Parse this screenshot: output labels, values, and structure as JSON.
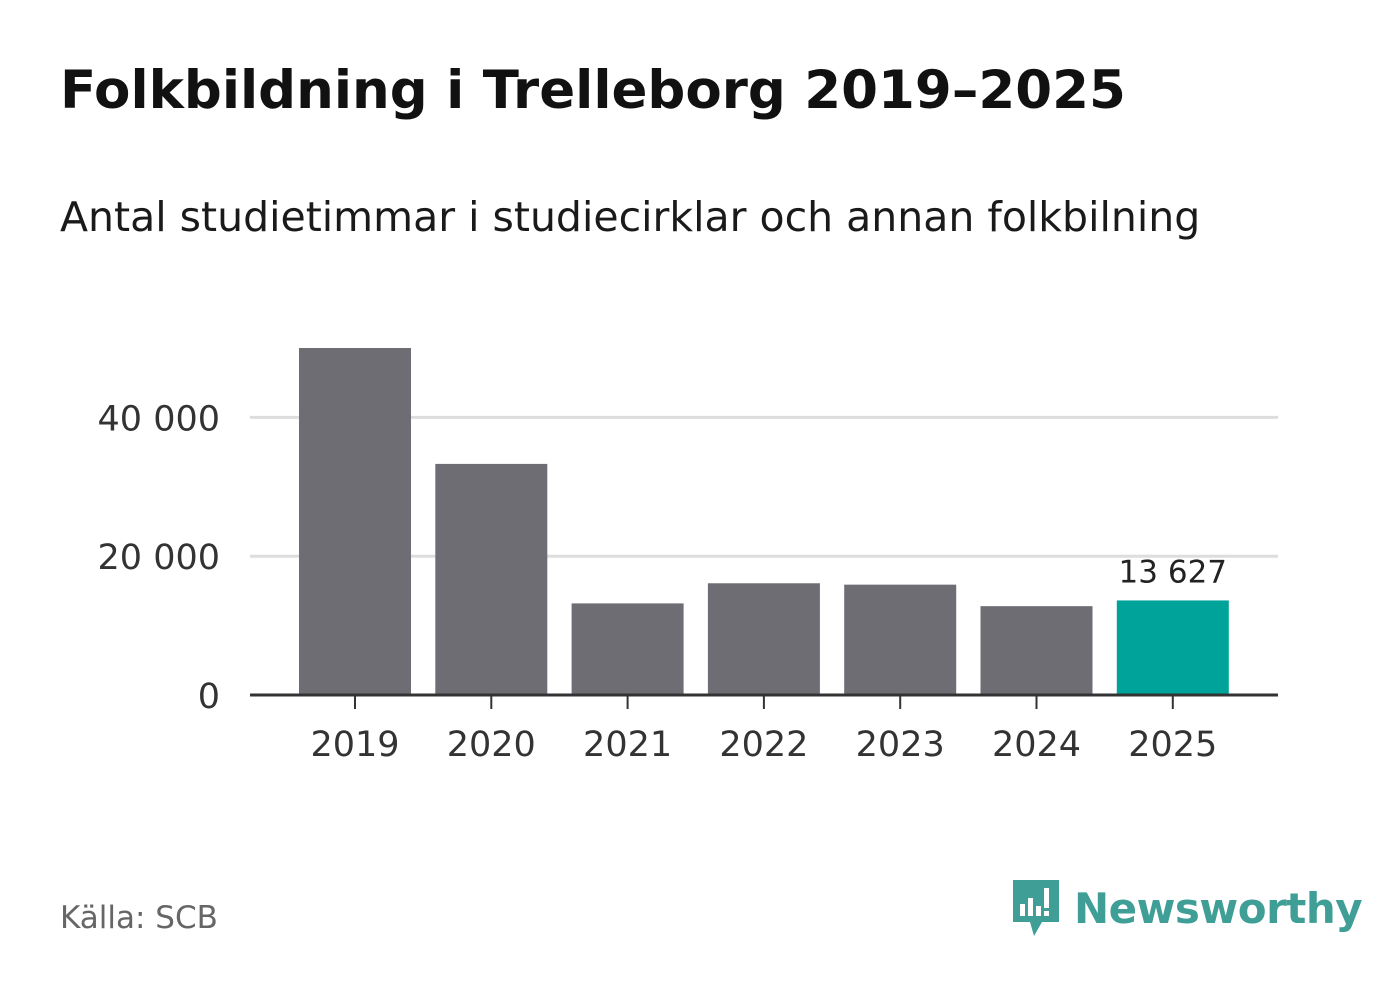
{
  "header": {
    "title": "Folkbildning i Trelleborg 2019–2025",
    "subtitle": "Antal studietimmar i studiecirklar och annan folkbilning"
  },
  "footer": {
    "source": "Källa: SCB",
    "brand": "Newsworthy",
    "brand_icon": "newsworthy-logo-icon"
  },
  "colors": {
    "bar_default": "#6e6d73",
    "bar_highlight": "#00a399",
    "gridline": "#dddddd",
    "axis": "#333333",
    "brand": "#3f9e95"
  },
  "chart_data": {
    "type": "bar",
    "title": "Folkbildning i Trelleborg 2019–2025",
    "subtitle": "Antal studietimmar i studiecirklar och annan folkbilning",
    "xlabel": "",
    "ylabel": "",
    "categories": [
      "2019",
      "2020",
      "2021",
      "2022",
      "2023",
      "2024",
      "2025"
    ],
    "values": [
      50000,
      33300,
      13200,
      16100,
      15900,
      12800,
      13627
    ],
    "highlight_index": 6,
    "data_labels": [
      {
        "index": 6,
        "text": "13 627"
      }
    ],
    "ylim": [
      0,
      50000
    ],
    "yticks": [
      0,
      20000,
      40000
    ],
    "ytick_labels": [
      "0",
      "20 000",
      "40 000"
    ],
    "grid": true
  }
}
